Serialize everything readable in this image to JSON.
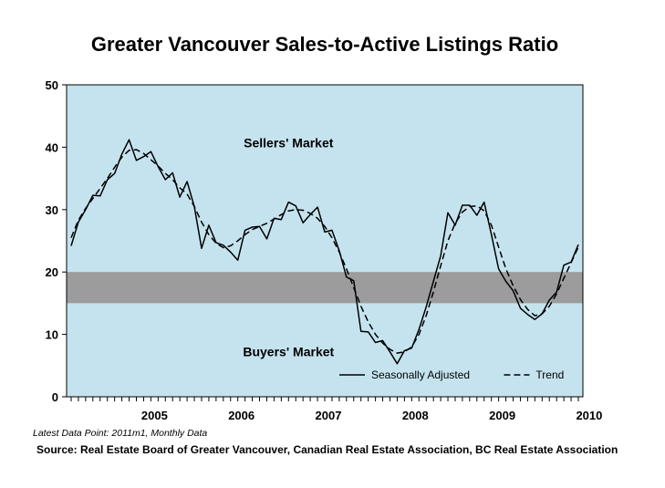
{
  "title": "Greater Vancouver Sales-to-Active Listings Ratio",
  "footnote": "Latest Data Point: 2011m1, Monthly Data",
  "source": "Source: Real Estate Board of Greater Vancouver, Canadian Real Estate Association, BC Real Estate Association",
  "colors": {
    "plot_background": "#c5e3ef",
    "balanced_band": "#9c9c9c",
    "series_line": "#000000"
  },
  "chart_data": {
    "type": "line",
    "title": "Greater Vancouver Sales-to-Active Listings Ratio",
    "xlabel": "",
    "ylabel": "",
    "ylim": [
      0,
      50
    ],
    "yticks": [
      0,
      10,
      20,
      30,
      40,
      50
    ],
    "x_start": "2004m7",
    "x_end": "2011m1",
    "year_labels": [
      "2005",
      "2006",
      "2007",
      "2008",
      "2009",
      "2010"
    ],
    "grid": false,
    "legend_position": "bottom-right",
    "band": {
      "from": 15,
      "to": 20
    },
    "annotations": [
      {
        "text": "Sellers' Market",
        "x": "2007m1",
        "y": 40
      },
      {
        "text": "Buyers' Market",
        "x": "2007m1",
        "y": 6.5
      }
    ],
    "series": [
      {
        "name": "Seasonally Adjusted",
        "style": "solid",
        "values": [
          24.2,
          28.0,
          30.0,
          32.3,
          32.2,
          34.8,
          35.8,
          38.9,
          41.2,
          37.9,
          38.5,
          39.3,
          36.9,
          34.8,
          35.9,
          32.0,
          34.5,
          30.5,
          23.8,
          27.5,
          24.7,
          24.3,
          23.2,
          21.9,
          26.7,
          27.2,
          27.3,
          25.3,
          28.6,
          28.4,
          31.2,
          30.6,
          27.9,
          29.2,
          30.4,
          26.4,
          26.7,
          23.4,
          19.2,
          18.6,
          10.5,
          10.4,
          8.7,
          9.0,
          7.2,
          5.3,
          7.4,
          7.8,
          10.8,
          14.4,
          18.5,
          22.6,
          29.5,
          27.5,
          30.7,
          30.7,
          29.1,
          31.2,
          26.0,
          20.5,
          18.5,
          17.0,
          14.2,
          13.2,
          12.4,
          13.3,
          15.5,
          16.8,
          21.1,
          21.6,
          24.4
        ]
      },
      {
        "name": "Trend",
        "style": "dashed",
        "values": [
          25.5,
          28.3,
          30.2,
          31.8,
          33.4,
          35.0,
          36.8,
          38.4,
          39.5,
          39.6,
          39.0,
          38.0,
          37.0,
          35.8,
          34.8,
          33.5,
          32.5,
          30.5,
          28.0,
          26.0,
          24.6,
          23.9,
          24.2,
          25.0,
          26.0,
          26.8,
          27.3,
          27.8,
          28.5,
          29.2,
          29.8,
          30.0,
          29.9,
          29.4,
          28.6,
          27.3,
          25.5,
          23.2,
          20.5,
          17.5,
          14.5,
          12.0,
          10.0,
          8.6,
          7.6,
          7.0,
          7.2,
          8.0,
          10.0,
          13.0,
          16.8,
          21.0,
          25.0,
          27.8,
          29.6,
          30.5,
          30.6,
          29.8,
          27.5,
          24.0,
          20.5,
          17.8,
          15.6,
          14.0,
          13.0,
          13.3,
          14.5,
          16.5,
          19.0,
          21.5,
          24.0
        ]
      }
    ]
  }
}
